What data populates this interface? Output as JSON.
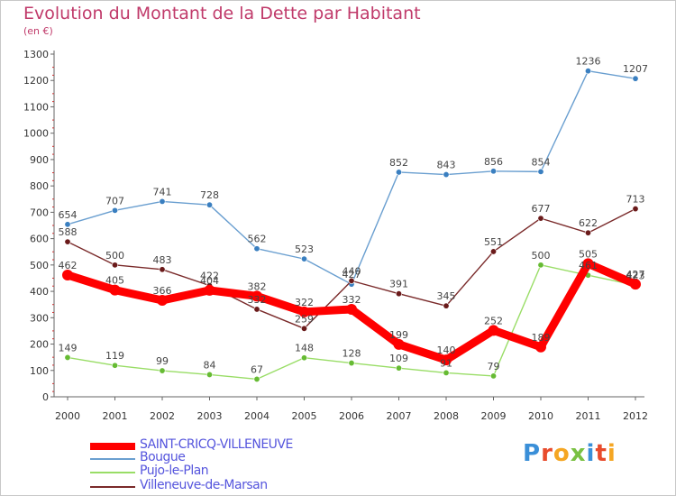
{
  "chart_data": {
    "type": "line",
    "title": "Evolution du Montant de la Dette par Habitant",
    "subtitle": "(en €)",
    "xlabel": "",
    "ylabel": "",
    "ylim": [
      0,
      1300
    ],
    "yticks": [
      0,
      100,
      200,
      300,
      400,
      500,
      600,
      700,
      800,
      900,
      1000,
      1100,
      1200,
      1300
    ],
    "categories": [
      "2000",
      "2001",
      "2002",
      "2003",
      "2004",
      "2005",
      "2006",
      "2007",
      "2008",
      "2009",
      "2010",
      "2011",
      "2012"
    ],
    "grid": false,
    "legend": "bottom-left",
    "series": [
      {
        "name": "Bougue",
        "color": "#6a9fd0",
        "marker": "#3a7fc0",
        "values": [
          654,
          707,
          741,
          728,
          562,
          523,
          427,
          852,
          843,
          856,
          854,
          1236,
          1207
        ]
      },
      {
        "name": "Villeneuve-de-Marsan",
        "color": "#7a2a2a",
        "marker": "#6a1a1a",
        "values": [
          588,
          500,
          483,
          422,
          332,
          259,
          440,
          391,
          345,
          551,
          677,
          622,
          713
        ]
      },
      {
        "name": "Pujo-le-Plan",
        "color": "#99dd66",
        "marker": "#66bb33",
        "values": [
          149,
          119,
          99,
          84,
          67,
          148,
          128,
          109,
          91,
          79,
          500,
          461,
          423
        ]
      },
      {
        "name": "SAINT-CRICQ-VILLENEUVE",
        "color": "#ff0000",
        "marker": "#ff0000",
        "values": [
          462,
          405,
          366,
          404,
          382,
          322,
          332,
          199,
          140,
          252,
          189,
          505,
          427
        ]
      }
    ],
    "legend_order": [
      "SAINT-CRICQ-VILLENEUVE",
      "Bougue",
      "Pujo-le-Plan",
      "Villeneuve-de-Marsan"
    ]
  },
  "branding": {
    "logo_text": "Proxiti",
    "logo_colors": [
      "#3a8fd8",
      "#e84b2c",
      "#f5a623",
      "#7ac143",
      "#3a8fd8",
      "#e84b2c",
      "#f5a623"
    ]
  }
}
